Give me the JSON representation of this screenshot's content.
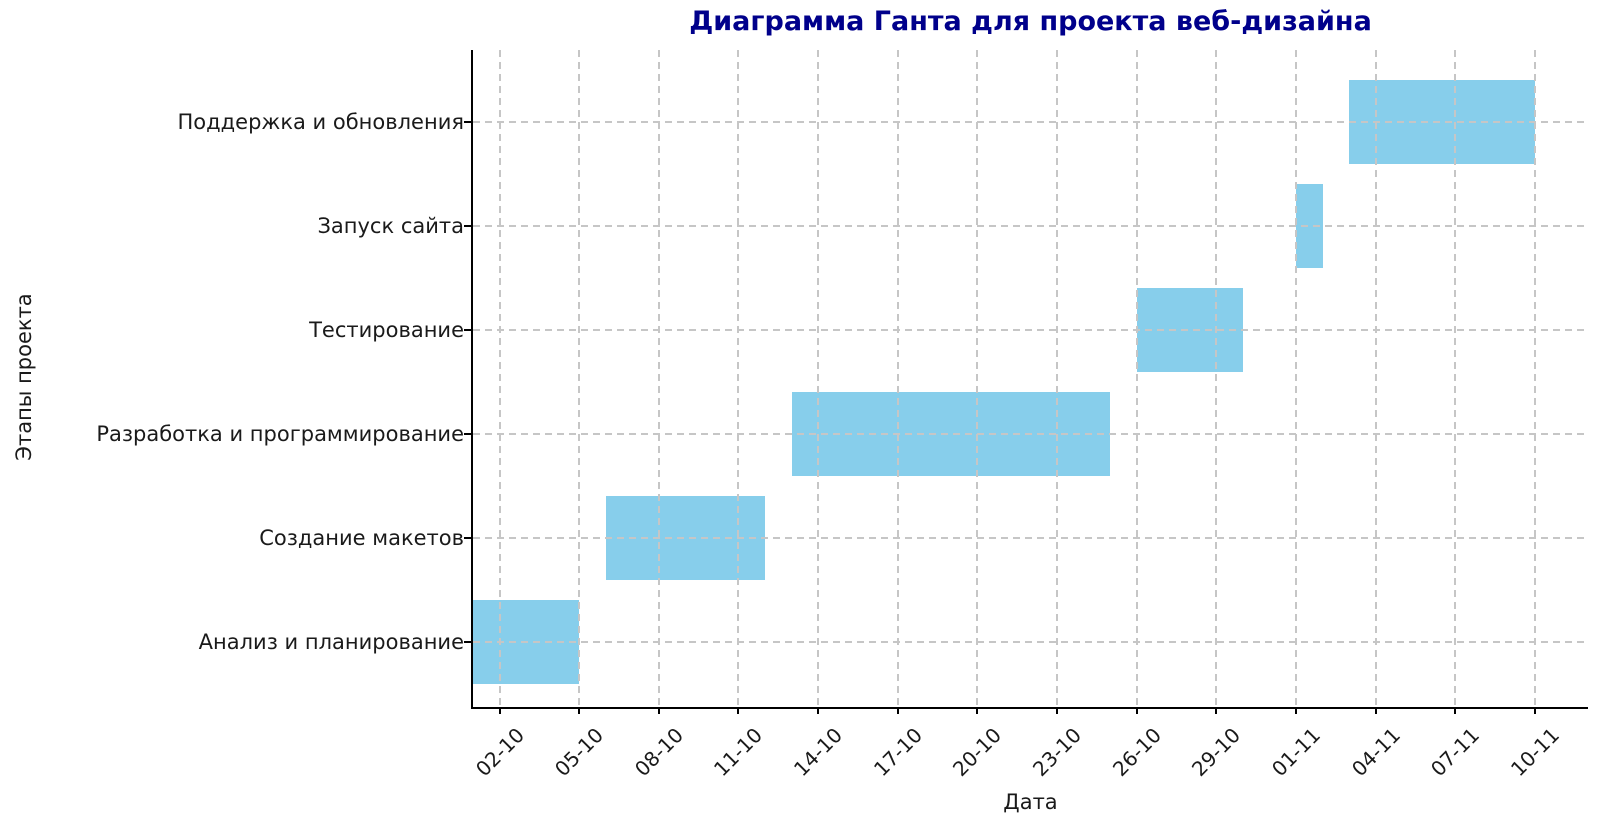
{
  "chart_data": {
    "type": "bar",
    "subtype": "gantt",
    "title": "Диаграмма Ганта для проекта веб-дизайна",
    "xlabel": "Дата",
    "ylabel": "Этапы проекта",
    "grid": true,
    "grid_style": "dashed",
    "legend_position": "none",
    "bar_color": "#87CEEB",
    "title_color": "#00008B",
    "grid_color": "#c6c6c6",
    "axis_color": "#000000",
    "text_color": "#1a1a1a",
    "x_axis_range_days": [
      0,
      42
    ],
    "x_axis_start_date": "01-10",
    "x_tick_interval_days": 3,
    "x_ticks": [
      {
        "label": "02-10",
        "day": 1
      },
      {
        "label": "05-10",
        "day": 4
      },
      {
        "label": "08-10",
        "day": 7
      },
      {
        "label": "11-10",
        "day": 10
      },
      {
        "label": "14-10",
        "day": 13
      },
      {
        "label": "17-10",
        "day": 16
      },
      {
        "label": "20-10",
        "day": 19
      },
      {
        "label": "23-10",
        "day": 22
      },
      {
        "label": "26-10",
        "day": 25
      },
      {
        "label": "29-10",
        "day": 28
      },
      {
        "label": "01-11",
        "day": 31
      },
      {
        "label": "04-11",
        "day": 34
      },
      {
        "label": "07-11",
        "day": 37
      },
      {
        "label": "10-11",
        "day": 40
      }
    ],
    "tasks_bottom_to_top": [
      {
        "label": "Анализ и планирование",
        "start_date": "01-10",
        "end_date": "05-10",
        "start_day": 0,
        "duration_days": 4
      },
      {
        "label": "Создание макетов",
        "start_date": "06-10",
        "end_date": "12-10",
        "start_day": 5,
        "duration_days": 6
      },
      {
        "label": "Разработка и программирование",
        "start_date": "13-10",
        "end_date": "25-10",
        "start_day": 12,
        "duration_days": 12
      },
      {
        "label": "Тестирование",
        "start_date": "26-10",
        "end_date": "30-10",
        "start_day": 25,
        "duration_days": 4
      },
      {
        "label": "Запуск сайта",
        "start_date": "01-11",
        "end_date": "02-11",
        "start_day": 31,
        "duration_days": 1
      },
      {
        "label": "Поддержка и обновления",
        "start_date": "03-11",
        "end_date": "10-11",
        "start_day": 33,
        "duration_days": 7
      }
    ]
  }
}
